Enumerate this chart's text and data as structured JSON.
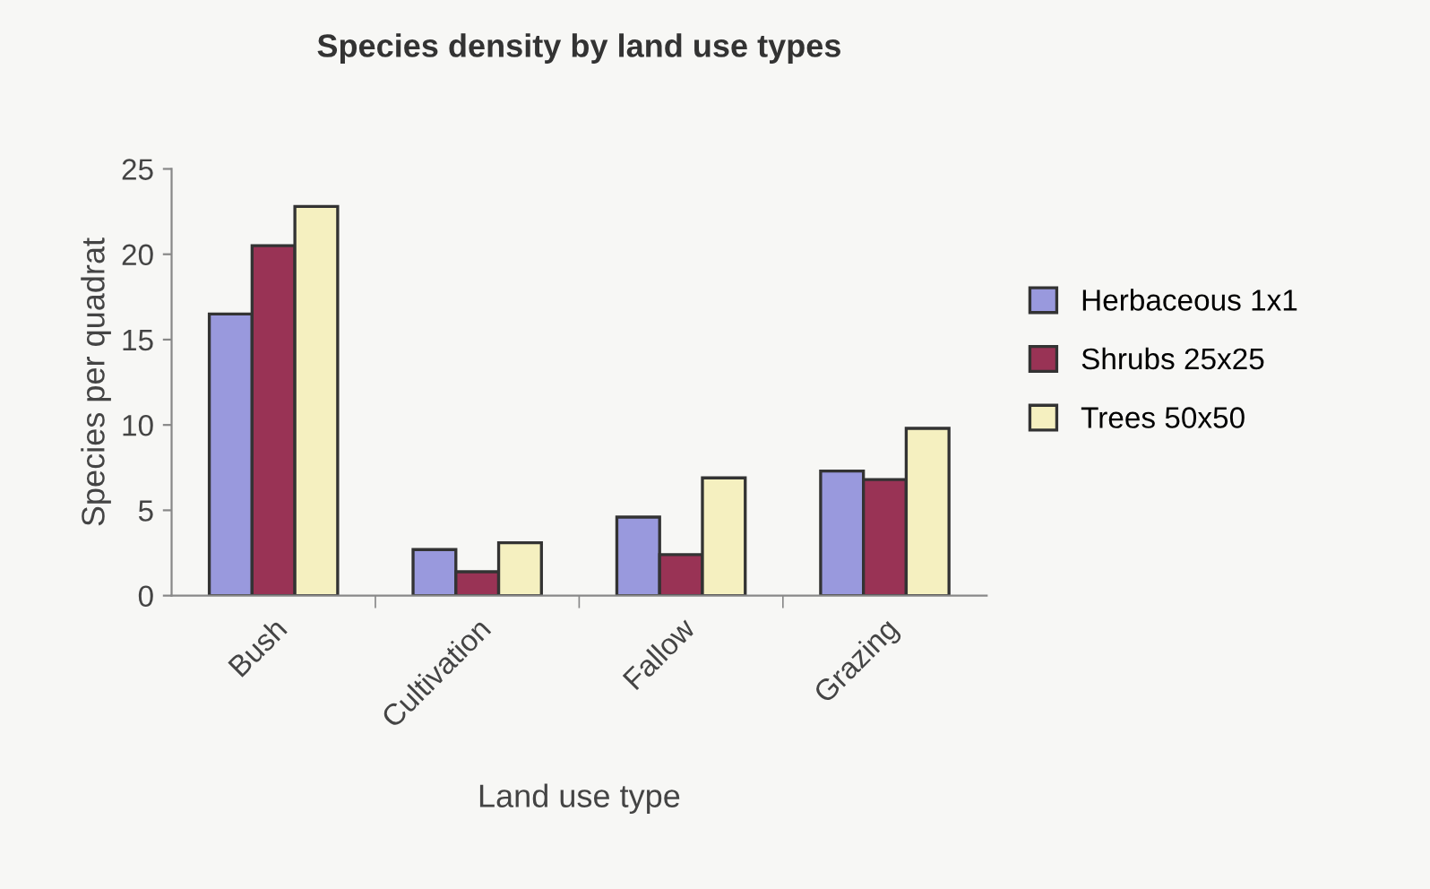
{
  "chart_data": {
    "type": "bar",
    "title": "Species density by land use types",
    "xlabel": "Land use type",
    "ylabel": "Species per quadrat",
    "categories": [
      "Bush",
      "Cultivation",
      "Fallow",
      "Grazing"
    ],
    "series": [
      {
        "name": "Herbaceous 1x1",
        "color": "#9999dd",
        "values": [
          16.5,
          2.7,
          4.6,
          7.3
        ]
      },
      {
        "name": "Shrubs 25x25",
        "color": "#993355",
        "values": [
          20.5,
          1.4,
          2.4,
          6.8
        ]
      },
      {
        "name": "Trees 50x50",
        "color": "#f5f0c0",
        "values": [
          22.8,
          3.1,
          6.9,
          9.8
        ]
      }
    ],
    "ylim": [
      0,
      25
    ],
    "yticks": [
      0,
      5,
      10,
      15,
      20,
      25
    ],
    "grid": false,
    "legend": "right"
  }
}
